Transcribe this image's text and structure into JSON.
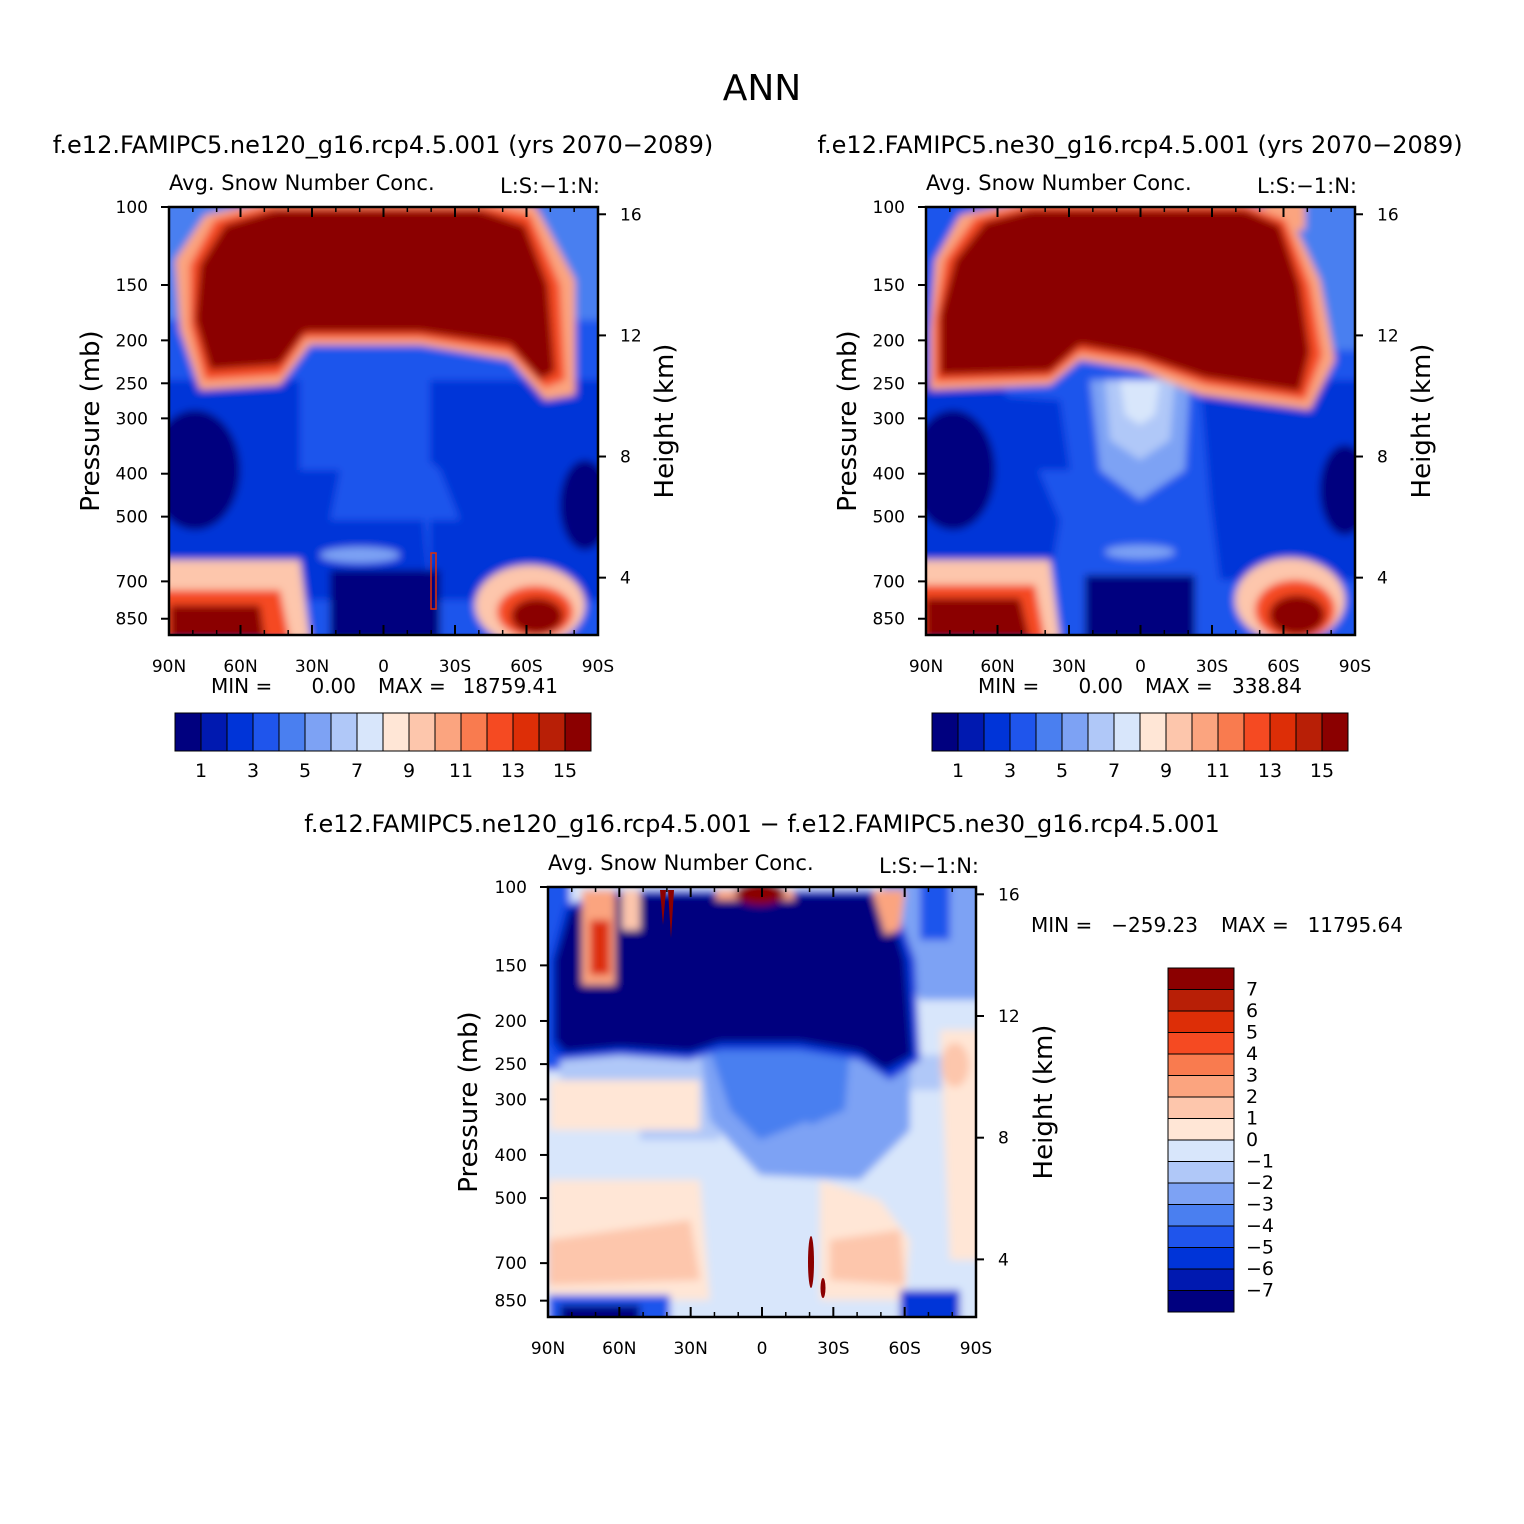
{
  "page_title": "ANN",
  "diff_title": "f.e12.FAMIPC5.ne120_g16.rcp4.5.001 − f.e12.FAMIPC5.ne30_g16.rcp4.5.001",
  "colors": {
    "levels16": [
      "#00007f",
      "#0019b0",
      "#0034d8",
      "#1f55ec",
      "#4a7ff0",
      "#7da2f4",
      "#b0c8f8",
      "#d8e6fb",
      "#ffe6d6",
      "#fdc6ac",
      "#fba47f",
      "#f97b4f",
      "#f54a22",
      "#dd2e07",
      "#b81f06",
      "#8b0000"
    ],
    "levels15": [
      "#00007f",
      "#0019b0",
      "#0034d8",
      "#1f55ec",
      "#4a7ff0",
      "#7da2f4",
      "#b0c8f8",
      "#d8e6fb",
      "#ffe6d6",
      "#fdc6ac",
      "#fba47f",
      "#f97b4f",
      "#f54a22",
      "#dd2e07",
      "#8b0000"
    ]
  },
  "chart_data": [
    {
      "type": "heatmap",
      "title": "f.e12.FAMIPC5.ne120_g16.rcp4.5.001 (yrs 2070−2089)",
      "subtitle": "Avg. Snow Number Conc.",
      "subtitle_right": "L:S:−1:N:",
      "xlabel": "",
      "ylabel": "Pressure (mb)",
      "y2label": "Height (km)",
      "x_ticks": [
        "90N",
        "60N",
        "30N",
        "0",
        "30S",
        "60S",
        "90S"
      ],
      "y_ticks": [
        "100",
        "150",
        "200",
        "250",
        "300",
        "400",
        "500",
        "700",
        "850"
      ],
      "y2_ticks": [
        "16",
        "12",
        "8",
        "4"
      ],
      "stats": {
        "min_label": "MIN =",
        "min": "0.00",
        "max_label": "MAX =",
        "max": "18759.41"
      },
      "colorbar": {
        "orientation": "horizontal",
        "labels": [
          "1",
          "3",
          "5",
          "7",
          "9",
          "11",
          "13",
          "15"
        ]
      }
    },
    {
      "type": "heatmap",
      "title": "f.e12.FAMIPC5.ne30_g16.rcp4.5.001 (yrs 2070−2089)",
      "subtitle": "Avg. Snow Number Conc.",
      "subtitle_right": "L:S:−1:N:",
      "xlabel": "",
      "ylabel": "Pressure (mb)",
      "y2label": "Height (km)",
      "x_ticks": [
        "90N",
        "60N",
        "30N",
        "0",
        "30S",
        "60S",
        "90S"
      ],
      "y_ticks": [
        "100",
        "150",
        "200",
        "250",
        "300",
        "400",
        "500",
        "700",
        "850"
      ],
      "y2_ticks": [
        "16",
        "12",
        "8",
        "4"
      ],
      "stats": {
        "min_label": "MIN =",
        "min": "0.00",
        "max_label": "MAX =",
        "max": "338.84"
      },
      "colorbar": {
        "orientation": "horizontal",
        "labels": [
          "1",
          "3",
          "5",
          "7",
          "9",
          "11",
          "13",
          "15"
        ]
      }
    },
    {
      "type": "heatmap",
      "subtitle": "Avg. Snow Number Conc.",
      "subtitle_right": "L:S:−1:N:",
      "xlabel": "",
      "ylabel": "Pressure (mb)",
      "y2label": "Height (km)",
      "x_ticks": [
        "90N",
        "60N",
        "30N",
        "0",
        "30S",
        "60S",
        "90S"
      ],
      "y_ticks": [
        "100",
        "150",
        "200",
        "250",
        "300",
        "400",
        "500",
        "700",
        "850"
      ],
      "y2_ticks": [
        "16",
        "12",
        "8",
        "4"
      ],
      "stats": {
        "min_label": "MIN =",
        "min": "−259.23",
        "max_label": "MAX =",
        "max": "11795.64"
      },
      "colorbar": {
        "orientation": "vertical",
        "labels": [
          "7",
          "6",
          "5",
          "4",
          "3",
          "2",
          "1",
          "0",
          "−1",
          "−2",
          "−3",
          "−4",
          "−5",
          "−6",
          "−7"
        ]
      }
    }
  ]
}
